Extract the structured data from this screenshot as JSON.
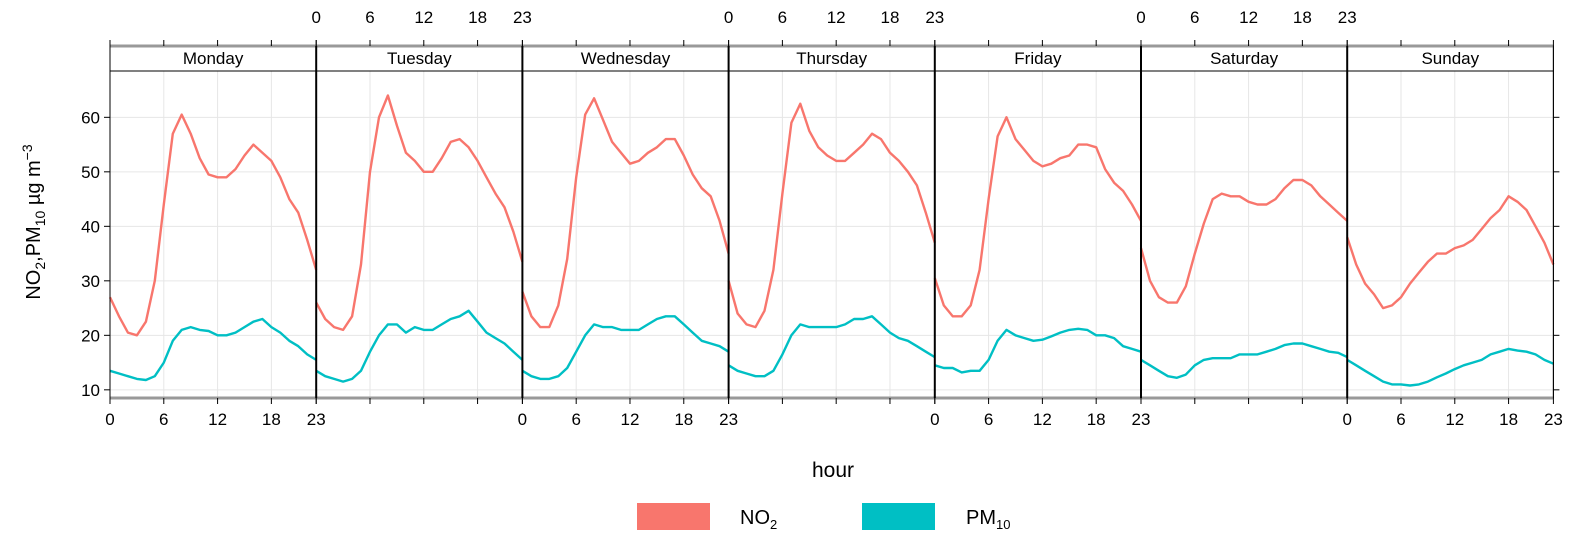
{
  "chart_data": {
    "type": "line",
    "layout": "faceted-by-weekday",
    "ylabel": {
      "main": "NO",
      "sub1": "2",
      "mid": ",PM",
      "sub2": "10",
      "unit": " µg m",
      "sup": "−3"
    },
    "xlabel": "hour",
    "ylim": [
      8.5,
      68.5
    ],
    "y_ticks": [
      10,
      20,
      30,
      40,
      50,
      60
    ],
    "x_range": [
      0,
      23
    ],
    "x_ticks": [
      0,
      6,
      12,
      18,
      23
    ],
    "panels": [
      {
        "label": "Monday",
        "no2": [
          27,
          23.5,
          20.5,
          20,
          22.5,
          30,
          44,
          57,
          60.5,
          57,
          52.5,
          49.5,
          49,
          49,
          50.5,
          53,
          55,
          53.5,
          52,
          49,
          45,
          42.5,
          37.5,
          32
        ],
        "pm10": [
          13.5,
          13,
          12.5,
          12,
          11.8,
          12.5,
          15,
          19,
          21,
          21.5,
          21,
          20.8,
          20,
          20,
          20.5,
          21.5,
          22.5,
          23,
          21.5,
          20.5,
          19,
          18,
          16.5,
          15.5
        ]
      },
      {
        "label": "Tuesday",
        "no2": [
          26,
          23,
          21.5,
          21,
          23.5,
          33,
          50,
          60,
          64,
          58.5,
          53.5,
          52,
          50,
          50,
          52.5,
          55.5,
          56,
          54.5,
          52,
          49,
          46,
          43.5,
          39,
          33.5
        ],
        "pm10": [
          13.5,
          12.5,
          12,
          11.5,
          12,
          13.5,
          17,
          20,
          22,
          22,
          20.5,
          21.5,
          21,
          21,
          22,
          23,
          23.5,
          24.5,
          22.5,
          20.5,
          19.5,
          18.5,
          17,
          15.5
        ]
      },
      {
        "label": "Wednesday",
        "no2": [
          28,
          23.5,
          21.5,
          21.5,
          25.5,
          34,
          49,
          60.5,
          63.5,
          59.5,
          55.5,
          53.5,
          51.5,
          52,
          53.5,
          54.5,
          56,
          56,
          53,
          49.5,
          47,
          45.5,
          41,
          35
        ],
        "pm10": [
          13.5,
          12.5,
          12,
          12,
          12.5,
          14,
          17,
          20,
          22,
          21.5,
          21.5,
          21,
          21,
          21,
          22,
          23,
          23.5,
          23.5,
          22,
          20.5,
          19,
          18.5,
          18,
          17
        ]
      },
      {
        "label": "Thursday",
        "no2": [
          30,
          24,
          22,
          21.5,
          24.5,
          32,
          46,
          59,
          62.5,
          57.5,
          54.5,
          53,
          52,
          52,
          53.5,
          55,
          57,
          56,
          53.5,
          52,
          50,
          47.5,
          42.5,
          37
        ],
        "pm10": [
          14.5,
          13.5,
          13,
          12.5,
          12.5,
          13.5,
          16.5,
          20,
          22,
          21.5,
          21.5,
          21.5,
          21.5,
          22,
          23,
          23,
          23.5,
          22,
          20.5,
          19.5,
          19,
          18,
          17,
          16
        ]
      },
      {
        "label": "Friday",
        "no2": [
          30.5,
          25.5,
          23.5,
          23.5,
          25.5,
          32,
          45,
          56.5,
          60,
          56,
          54,
          52,
          51,
          51.5,
          52.5,
          53,
          55,
          55,
          54.5,
          50.5,
          48,
          46.5,
          44,
          41
        ],
        "pm10": [
          14.5,
          14,
          14,
          13.2,
          13.5,
          13.5,
          15.5,
          19,
          21,
          20,
          19.5,
          19,
          19.2,
          19.8,
          20.5,
          21,
          21.2,
          21,
          20,
          20,
          19.5,
          18,
          17.5,
          17
        ]
      },
      {
        "label": "Saturday",
        "no2": [
          36,
          30,
          27,
          26,
          26,
          29,
          35,
          40.5,
          45,
          46,
          45.5,
          45.5,
          44.5,
          44,
          44,
          45,
          47,
          48.5,
          48.5,
          47.5,
          45.5,
          44,
          42.5,
          41
        ],
        "pm10": [
          15.5,
          14.5,
          13.5,
          12.5,
          12.2,
          12.8,
          14.5,
          15.5,
          15.8,
          15.8,
          15.8,
          16.5,
          16.5,
          16.5,
          17,
          17.5,
          18.2,
          18.5,
          18.5,
          18,
          17.5,
          17,
          16.8,
          16
        ]
      },
      {
        "label": "Sunday",
        "no2": [
          38,
          33,
          29.5,
          27.5,
          25,
          25.5,
          27,
          29.5,
          31.5,
          33.5,
          35,
          35,
          36,
          36.5,
          37.5,
          39.5,
          41.5,
          43,
          45.5,
          44.5,
          43,
          40,
          37,
          33
        ],
        "pm10": [
          15.5,
          14.5,
          13.5,
          12.5,
          11.5,
          11,
          11,
          10.8,
          11,
          11.5,
          12.3,
          13,
          13.8,
          14.5,
          15,
          15.5,
          16.5,
          17,
          17.5,
          17.2,
          17,
          16.5,
          15.5,
          14.8
        ]
      }
    ],
    "series": [
      {
        "key": "no2",
        "name_main": "NO",
        "name_sub": "2",
        "color": "#F8766D"
      },
      {
        "key": "pm10",
        "name_main": "PM",
        "name_sub": "10",
        "color": "#00BFC4"
      }
    ],
    "grid": true,
    "legend_position": "bottom"
  }
}
